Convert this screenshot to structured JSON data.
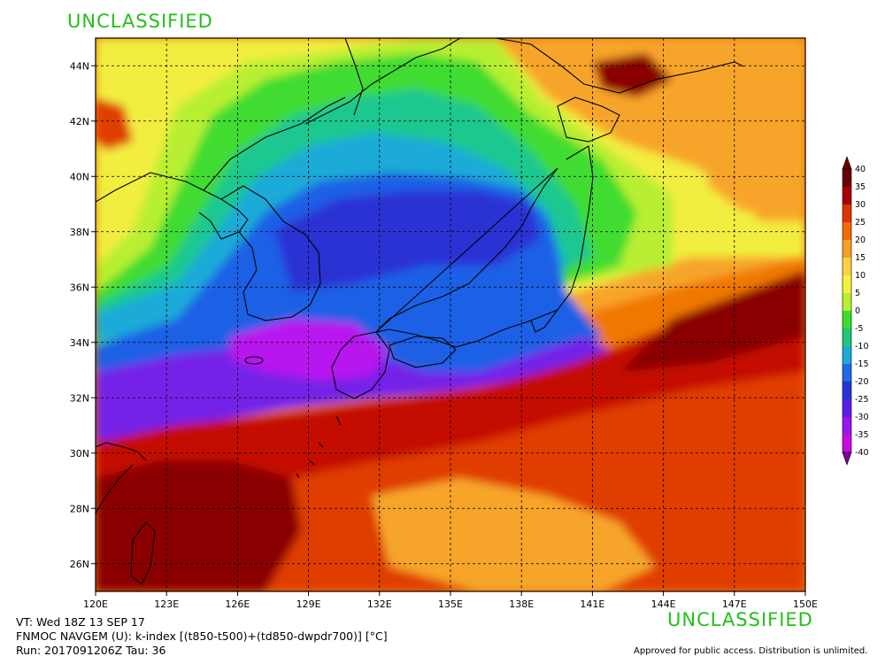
{
  "header": {
    "classification": "UNCLASSIFIED"
  },
  "footer": {
    "classification": "UNCLASSIFIED",
    "valid_time": "VT: Wed 18Z 13 SEP 17",
    "model_line": "FNMOC NAVGEM (U): k-index [(t850-t500)+(td850-dwpdr700)] [°C]",
    "run_line": "Run: 2017091206Z Tau: 36",
    "approval": "Approved for public access. Distribution is unlimited."
  },
  "map": {
    "lon_range": [
      120,
      150
    ],
    "lat_range": [
      25,
      45
    ],
    "lon_ticks": [
      "120E",
      "123E",
      "126E",
      "129E",
      "132E",
      "135E",
      "138E",
      "141E",
      "144E",
      "147E",
      "150E"
    ],
    "lat_ticks": [
      "26N",
      "28N",
      "30N",
      "32N",
      "34N",
      "36N",
      "38N",
      "40N",
      "42N",
      "44N"
    ],
    "grid": true
  },
  "colorbar": {
    "labels": [
      "40",
      "35",
      "30",
      "25",
      "20",
      "15",
      "10",
      "5",
      "0",
      "-5",
      "-10",
      "-15",
      "-20",
      "-25",
      "-30",
      "-35",
      "-40"
    ],
    "colors": [
      "#6b0000",
      "#a80000",
      "#e23200",
      "#f26a00",
      "#f9a024",
      "#fcd244",
      "#f4f23a",
      "#b9f032",
      "#3ddd2c",
      "#1ec878",
      "#1eaad8",
      "#1e6ae8",
      "#2236d8",
      "#5a1ee8",
      "#9a14f0",
      "#c80ae0",
      "#7a0096"
    ]
  },
  "field_colors": {
    "deep_red": "#8a0000",
    "red": "#c40a00",
    "red_orange": "#e03c00",
    "orange": "#f07800",
    "light_orange": "#f7a52a",
    "yellow": "#f2ee40",
    "yellow_green": "#b8ef33",
    "green": "#3fdc30",
    "teal": "#1ec890",
    "cyan": "#1eaad8",
    "blue": "#1e60e6",
    "dark_blue": "#2a30d4",
    "purple": "#7420e8",
    "magenta": "#b812ee"
  }
}
